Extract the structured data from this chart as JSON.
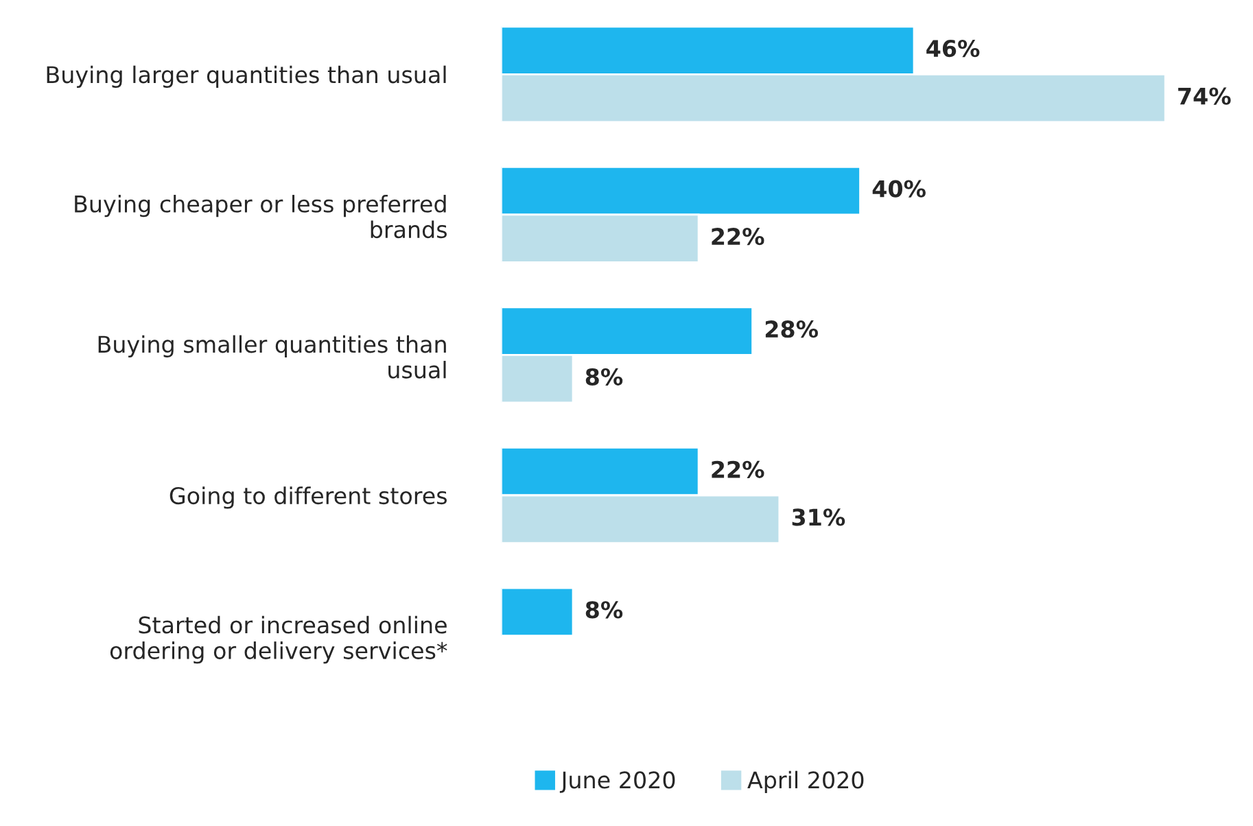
{
  "chart_data": {
    "type": "bar",
    "orientation": "horizontal",
    "categories": [
      "Buying larger quantities than usual",
      "Buying cheaper or less preferred\nbrands",
      "Buying smaller quantities than\nusual",
      "Going to different stores",
      "Started or increased online\nordering or delivery services*"
    ],
    "series": [
      {
        "name": "June 2020",
        "color": "#1eb6ee",
        "values": [
          46,
          40,
          28,
          22,
          8
        ],
        "value_labels": [
          "46%",
          "40%",
          "28%",
          "22%",
          "8%"
        ]
      },
      {
        "name": "April 2020",
        "color": "#bcdfea",
        "values": [
          74,
          22,
          8,
          31,
          null
        ],
        "value_labels": [
          "74%",
          "22%",
          "8%",
          "31%",
          null
        ]
      }
    ],
    "legend": "bottom",
    "grid": false,
    "tick_labels": "y"
  }
}
